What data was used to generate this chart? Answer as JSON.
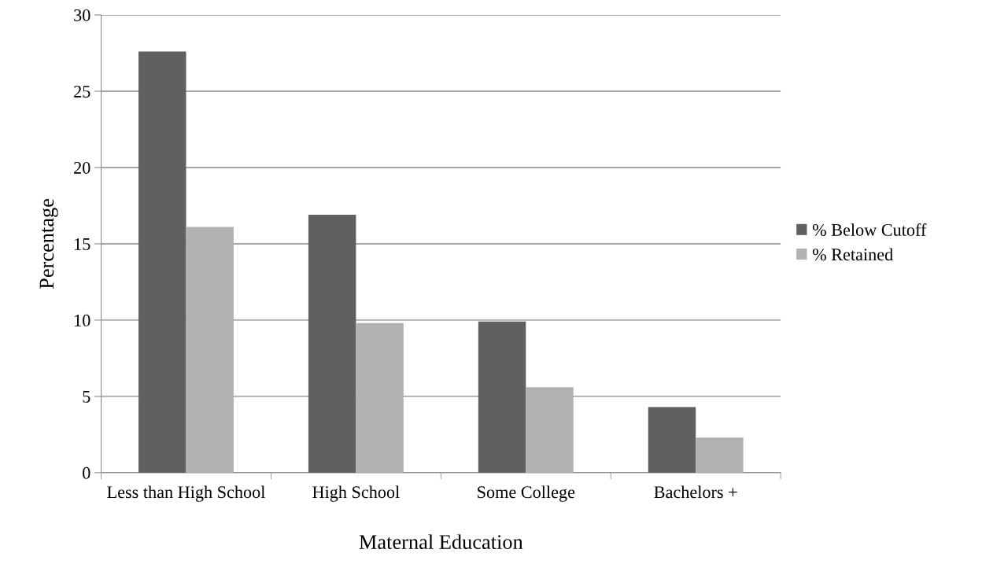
{
  "chart_data": {
    "type": "bar",
    "xlabel": "Maternal Education",
    "ylabel": "Percentage",
    "categories": [
      "Less than High School",
      "High School",
      "Some College",
      "Bachelors +"
    ],
    "series": [
      {
        "name": "% Below Cutoff",
        "color": "#606060",
        "values": [
          27.6,
          16.9,
          9.9,
          4.3
        ]
      },
      {
        "name": "% Retained",
        "color": "#b2b2b2",
        "values": [
          16.1,
          9.8,
          5.6,
          2.3
        ]
      }
    ],
    "ylim": [
      0,
      30
    ],
    "yticks": [
      0,
      5,
      10,
      15,
      20,
      25,
      30
    ],
    "grid": "y",
    "legend": "right"
  }
}
